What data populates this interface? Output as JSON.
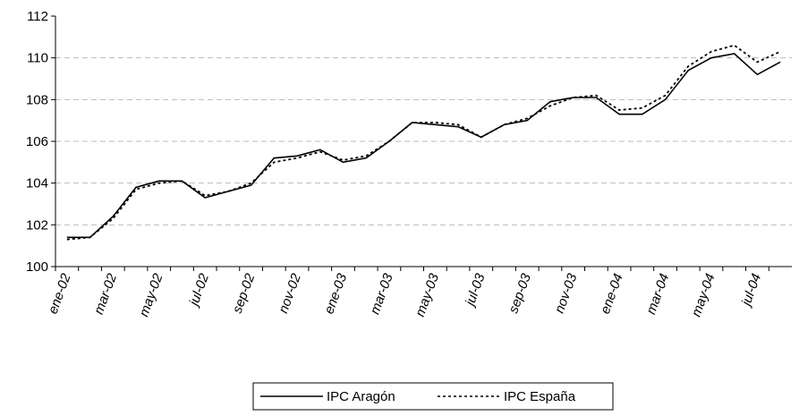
{
  "chart_data": {
    "type": "line",
    "categories": [
      "ene-02",
      null,
      "mar-02",
      null,
      "may-02",
      null,
      "jul-02",
      null,
      "sep-02",
      null,
      "nov-02",
      null,
      "ene-03",
      null,
      "mar-03",
      null,
      "may-03",
      null,
      "jul-03",
      null,
      "sep-03",
      null,
      "nov-03",
      null,
      "ene-04",
      null,
      "mar-04",
      null,
      "may-04",
      null,
      "jul-04",
      null
    ],
    "series": [
      {
        "name": "IPC Aragón",
        "color": "#000000",
        "dash": "solid",
        "values": [
          101.4,
          101.4,
          102.4,
          103.8,
          104.1,
          104.1,
          103.3,
          103.6,
          103.9,
          105.2,
          105.3,
          105.6,
          105.0,
          105.2,
          106.0,
          106.9,
          106.8,
          106.7,
          106.2,
          106.8,
          107.0,
          107.9,
          108.1,
          108.1,
          107.3,
          107.3,
          108.0,
          109.4,
          110.0,
          110.2,
          109.2,
          109.8
        ]
      },
      {
        "name": "IPC España",
        "color": "#000000",
        "dash": "dotted",
        "values": [
          101.3,
          101.4,
          102.3,
          103.7,
          104.0,
          104.1,
          103.4,
          103.6,
          104.0,
          105.0,
          105.2,
          105.5,
          105.1,
          105.3,
          106.0,
          106.9,
          106.9,
          106.8,
          106.2,
          106.8,
          107.1,
          107.7,
          108.1,
          108.2,
          107.5,
          107.6,
          108.2,
          109.6,
          110.3,
          110.6,
          109.8,
          110.3
        ]
      }
    ],
    "ylim": [
      100,
      112
    ],
    "yticks": [
      100,
      102,
      104,
      106,
      108,
      110,
      112
    ],
    "grid": true,
    "legend": "bottom"
  }
}
